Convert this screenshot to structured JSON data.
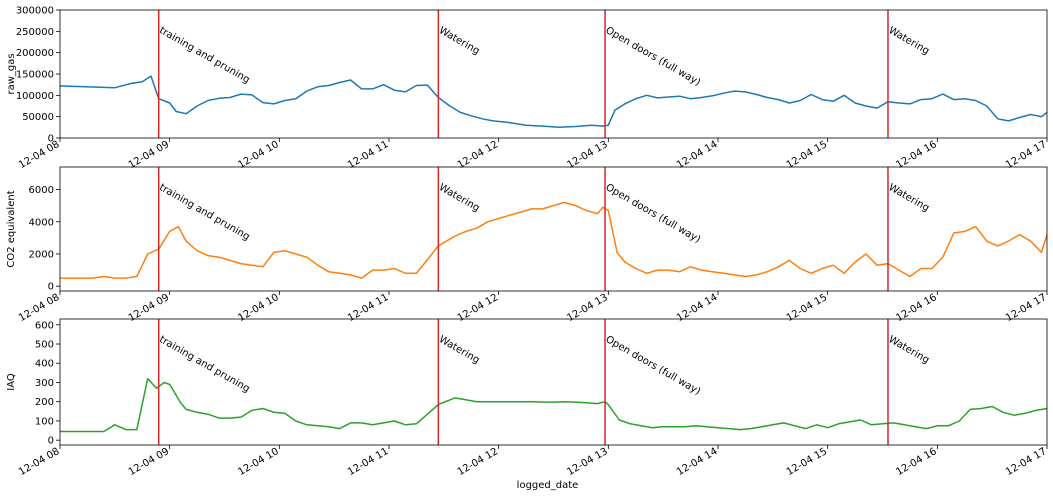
{
  "chart_data": [
    {
      "type": "line",
      "ylabel": "raw_gas",
      "ylim": [
        0,
        300000
      ],
      "yticks": [
        0,
        50000,
        100000,
        150000,
        200000,
        250000,
        300000
      ],
      "ytick_labels": [
        "0",
        "50000",
        "100000",
        "150000",
        "200000",
        "250000",
        "300000"
      ],
      "series": [
        {
          "color": "#1f77b4",
          "x": [
            8.0,
            8.5,
            8.65,
            8.75,
            8.83,
            8.9,
            9.0,
            9.06,
            9.15,
            9.25,
            9.35,
            9.45,
            9.55,
            9.65,
            9.75,
            9.85,
            9.95,
            10.05,
            10.15,
            10.25,
            10.35,
            10.45,
            10.55,
            10.65,
            10.75,
            10.85,
            10.95,
            11.05,
            11.15,
            11.25,
            11.35,
            11.45,
            11.55,
            11.65,
            11.75,
            11.85,
            11.95,
            12.1,
            12.25,
            12.4,
            12.55,
            12.7,
            12.85,
            12.95,
            13.0,
            13.06,
            13.15,
            13.25,
            13.35,
            13.45,
            13.55,
            13.65,
            13.75,
            13.85,
            13.95,
            14.05,
            14.15,
            14.25,
            14.35,
            14.45,
            14.55,
            14.65,
            14.75,
            14.85,
            14.95,
            15.05,
            15.15,
            15.25,
            15.35,
            15.45,
            15.55,
            15.65,
            15.75,
            15.85,
            15.95,
            16.05,
            16.15,
            16.25,
            16.35,
            16.45,
            16.55,
            16.65,
            16.75,
            16.85,
            16.95,
            17.0
          ],
          "y": [
            122000,
            118000,
            128000,
            132000,
            145000,
            92000,
            82000,
            62000,
            57000,
            75000,
            88000,
            93000,
            95000,
            103000,
            101000,
            83000,
            80000,
            88000,
            92000,
            110000,
            120000,
            123000,
            130000,
            136000,
            115000,
            115000,
            125000,
            112000,
            108000,
            123000,
            124000,
            95000,
            76000,
            60000,
            52000,
            45000,
            40000,
            36000,
            30000,
            28000,
            25000,
            27000,
            30000,
            28000,
            30000,
            65000,
            80000,
            92000,
            100000,
            94000,
            96000,
            98000,
            92000,
            95000,
            99000,
            105000,
            110000,
            108000,
            102000,
            95000,
            90000,
            82000,
            88000,
            102000,
            90000,
            86000,
            100000,
            82000,
            75000,
            70000,
            85000,
            82000,
            80000,
            90000,
            92000,
            103000,
            90000,
            92000,
            88000,
            75000,
            45000,
            40000,
            48000,
            55000,
            50000,
            60000
          ]
        }
      ],
      "annotations": [
        {
          "x": 8.9,
          "text": "training and pruning"
        },
        {
          "x": 11.45,
          "text": "Watering"
        },
        {
          "x": 12.97,
          "text": "Open doors (full way)"
        },
        {
          "x": 15.55,
          "text": "Watering"
        }
      ],
      "xticks": [
        8,
        9,
        10,
        11,
        12,
        13,
        14,
        15,
        16,
        17
      ],
      "xtick_labels": [
        "12-04 08",
        "12-04 09",
        "12-04 10",
        "12-04 11",
        "12-04 12",
        "12-04 13",
        "12-04 14",
        "12-04 15",
        "12-04 16",
        "12-04 17"
      ],
      "xlim": [
        8,
        17
      ]
    },
    {
      "type": "line",
      "ylabel": "CO2 equivalent",
      "ylim": [
        -300,
        7400
      ],
      "yticks": [
        0,
        2000,
        4000,
        6000
      ],
      "ytick_labels": [
        "0",
        "2000",
        "4000",
        "6000"
      ],
      "series": [
        {
          "color": "#ff7f0e",
          "x": [
            8.0,
            8.3,
            8.4,
            8.5,
            8.6,
            8.7,
            8.8,
            8.9,
            9.0,
            9.08,
            9.15,
            9.25,
            9.35,
            9.45,
            9.55,
            9.65,
            9.75,
            9.85,
            9.95,
            10.05,
            10.15,
            10.25,
            10.35,
            10.45,
            10.55,
            10.65,
            10.75,
            10.85,
            10.95,
            11.05,
            11.15,
            11.25,
            11.45,
            11.6,
            11.7,
            11.8,
            11.9,
            12.0,
            12.1,
            12.2,
            12.3,
            12.4,
            12.5,
            12.6,
            12.7,
            12.8,
            12.9,
            12.95,
            13.0,
            13.08,
            13.15,
            13.25,
            13.35,
            13.45,
            13.55,
            13.65,
            13.75,
            13.85,
            13.95,
            14.05,
            14.15,
            14.25,
            14.35,
            14.45,
            14.55,
            14.65,
            14.75,
            14.85,
            14.95,
            15.05,
            15.15,
            15.25,
            15.35,
            15.45,
            15.55,
            15.65,
            15.75,
            15.85,
            15.95,
            16.05,
            16.15,
            16.25,
            16.35,
            16.45,
            16.55,
            16.65,
            16.75,
            16.85,
            16.95,
            17.0
          ],
          "y": [
            500,
            500,
            600,
            500,
            500,
            600,
            2000,
            2300,
            3400,
            3700,
            2800,
            2200,
            1900,
            1800,
            1600,
            1400,
            1300,
            1200,
            2100,
            2200,
            2000,
            1800,
            1300,
            900,
            800,
            700,
            500,
            1000,
            1000,
            1100,
            800,
            800,
            2500,
            3100,
            3400,
            3600,
            4000,
            4200,
            4400,
            4600,
            4800,
            4800,
            5000,
            5200,
            5000,
            4700,
            4500,
            4900,
            4700,
            2100,
            1500,
            1100,
            800,
            1000,
            1000,
            900,
            1200,
            1000,
            900,
            800,
            700,
            600,
            700,
            900,
            1200,
            1600,
            1100,
            800,
            1100,
            1300,
            800,
            1500,
            2000,
            1300,
            1400,
            1000,
            600,
            1100,
            1100,
            1800,
            3300,
            3400,
            3700,
            2800,
            2500,
            2800,
            3200,
            2800,
            2100,
            3200
          ]
        }
      ],
      "annotations": [
        {
          "x": 8.9,
          "text": "training and pruning"
        },
        {
          "x": 11.45,
          "text": "Watering"
        },
        {
          "x": 12.97,
          "text": "Open doors (full way)"
        },
        {
          "x": 15.55,
          "text": "Watering"
        }
      ],
      "xticks": [
        8,
        9,
        10,
        11,
        12,
        13,
        14,
        15,
        16,
        17
      ],
      "xtick_labels": [
        "12-04 08",
        "12-04 09",
        "12-04 10",
        "12-04 11",
        "12-04 12",
        "12-04 13",
        "12-04 14",
        "12-04 15",
        "12-04 16",
        "12-04 17"
      ],
      "xlim": [
        8,
        17
      ]
    },
    {
      "type": "line",
      "ylabel": "IAQ",
      "xlabel": "logged_date",
      "ylim": [
        -25,
        630
      ],
      "yticks": [
        0,
        100,
        200,
        300,
        400,
        500,
        600
      ],
      "ytick_labels": [
        "0",
        "100",
        "200",
        "300",
        "400",
        "500",
        "600"
      ],
      "series": [
        {
          "color": "#2ca02c",
          "x": [
            8.0,
            8.4,
            8.5,
            8.6,
            8.7,
            8.8,
            8.88,
            8.95,
            9.0,
            9.1,
            9.15,
            9.25,
            9.35,
            9.45,
            9.55,
            9.65,
            9.75,
            9.85,
            9.95,
            10.05,
            10.15,
            10.25,
            10.35,
            10.45,
            10.55,
            10.65,
            10.75,
            10.85,
            10.95,
            11.05,
            11.15,
            11.25,
            11.45,
            11.6,
            11.7,
            11.8,
            11.9,
            12.0,
            12.1,
            12.2,
            12.3,
            12.4,
            12.5,
            12.6,
            12.7,
            12.8,
            12.9,
            12.97,
            13.0,
            13.1,
            13.2,
            13.3,
            13.4,
            13.5,
            13.6,
            13.7,
            13.8,
            13.9,
            14.0,
            14.1,
            14.2,
            14.3,
            14.4,
            14.5,
            14.6,
            14.7,
            14.8,
            14.9,
            15.0,
            15.1,
            15.2,
            15.3,
            15.4,
            15.5,
            15.6,
            15.7,
            15.8,
            15.9,
            16.0,
            16.1,
            16.2,
            16.3,
            16.4,
            16.5,
            16.6,
            16.7,
            16.8,
            16.9,
            17.0
          ],
          "y": [
            45,
            45,
            80,
            55,
            55,
            320,
            270,
            300,
            290,
            195,
            160,
            145,
            135,
            115,
            115,
            120,
            155,
            165,
            145,
            140,
            100,
            80,
            75,
            70,
            60,
            90,
            90,
            80,
            90,
            100,
            80,
            85,
            185,
            220,
            210,
            200,
            200,
            200,
            200,
            200,
            200,
            198,
            198,
            200,
            198,
            195,
            190,
            200,
            185,
            105,
            85,
            75,
            65,
            70,
            70,
            70,
            75,
            70,
            65,
            60,
            55,
            60,
            70,
            80,
            90,
            75,
            60,
            80,
            65,
            85,
            95,
            105,
            80,
            85,
            90,
            80,
            70,
            60,
            75,
            75,
            100,
            160,
            165,
            175,
            145,
            130,
            140,
            155,
            165
          ]
        }
      ],
      "annotations": [
        {
          "x": 8.9,
          "text": "training and pruning"
        },
        {
          "x": 11.45,
          "text": "Watering"
        },
        {
          "x": 12.97,
          "text": "Open doors (full way)"
        },
        {
          "x": 15.55,
          "text": "Watering"
        }
      ],
      "xticks": [
        8,
        9,
        10,
        11,
        12,
        13,
        14,
        15,
        16,
        17
      ],
      "xtick_labels": [
        "12-04 08",
        "12-04 09",
        "12-04 10",
        "12-04 11",
        "12-04 12",
        "12-04 13",
        "12-04 14",
        "12-04 15",
        "12-04 16",
        "12-04 17"
      ],
      "xlim": [
        8,
        17
      ]
    }
  ],
  "colors": {
    "event_line": "#d62728",
    "axes": "#000000",
    "background": "#ffffff"
  }
}
